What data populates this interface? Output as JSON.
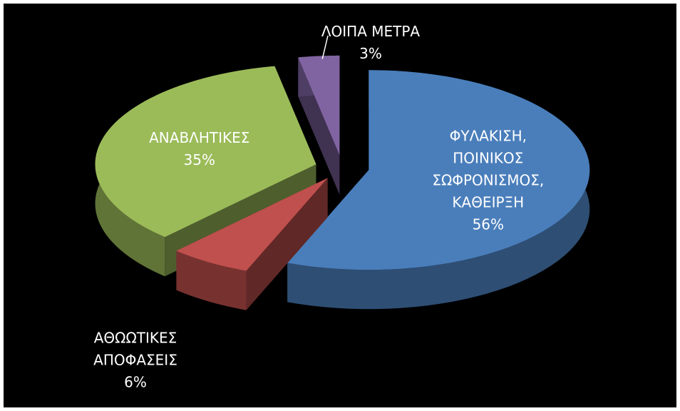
{
  "chart_data": {
    "type": "pie",
    "categories": [
      "ΦΥΛΑΚΙΣΗ, ΠΟΙΝΙΚΟΣ ΣΩΦΡΟΝΙΣΜΟΣ, ΚΑΘΕΙΡΞΗ",
      "ΑΘΩΩΤΙΚΕΣ ΑΠΟΦΑΣΕΙΣ",
      "ΑΝΑΒΛΗΤΙΚΕΣ",
      "ΛΟΙΠΑ ΜΕΤΡΑ"
    ],
    "values": [
      56,
      6,
      35,
      3
    ],
    "value_labels": [
      "56%",
      "6%",
      "35%",
      "3%"
    ],
    "colors": [
      "#4a7ebb",
      "#c0504d",
      "#9bbb59",
      "#8064a2"
    ]
  }
}
